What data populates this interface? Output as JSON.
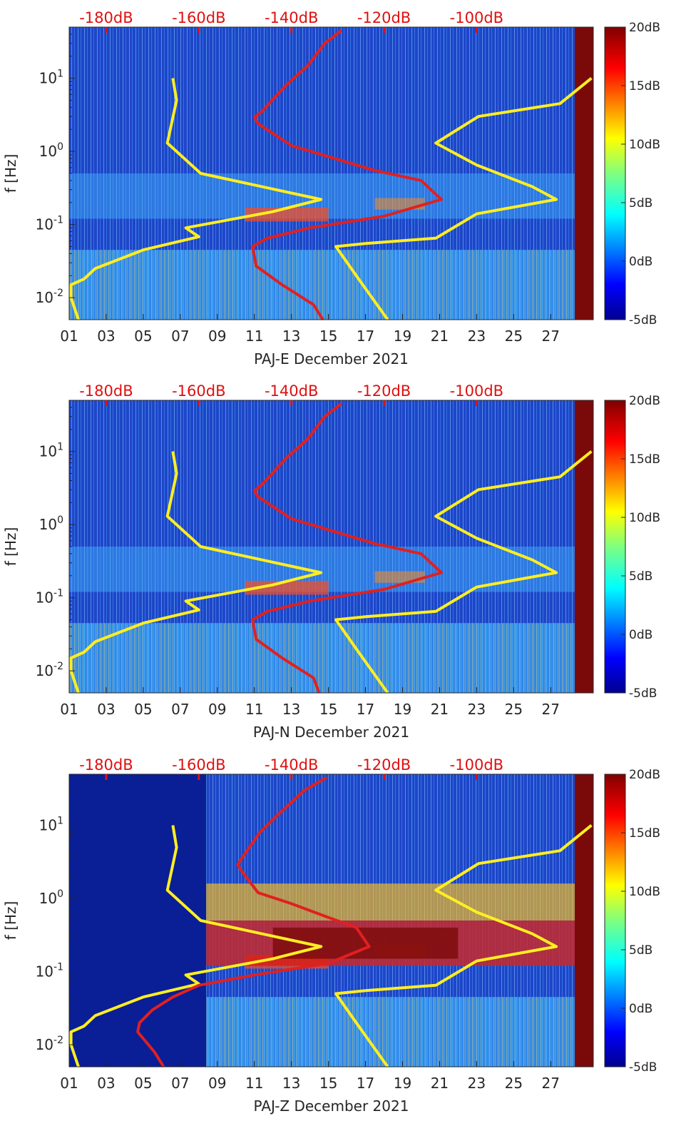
{
  "chart_data": [
    {
      "type": "heatmap",
      "title": "",
      "xlabel": "PAJ-E December 2021",
      "ylabel": "f [Hz]",
      "scale_y": "log",
      "ylim": [
        0.005,
        50
      ],
      "xlim": [
        1,
        29.3
      ],
      "x_ticks": [
        "01",
        "03",
        "05",
        "07",
        "09",
        "11",
        "13",
        "15",
        "17",
        "19",
        "21",
        "23",
        "25",
        "27"
      ],
      "y_ticks": [
        "10-2",
        "10-1",
        "100",
        "101"
      ],
      "top_axis_ticks": [
        "-180dB",
        "-160dB",
        "-140dB",
        "-120dB",
        "-100dB"
      ],
      "colorbar": {
        "ticks": [
          "20dB",
          "15dB",
          "10dB",
          "5dB",
          "0dB",
          "-5dB"
        ],
        "range": [
          -5,
          20
        ]
      },
      "series": [
        {
          "color": "#ffee22",
          "points": [
            [
              6.6,
              10
            ],
            [
              6.8,
              5
            ],
            [
              6.3,
              1.3
            ],
            [
              8.1,
              0.5
            ],
            [
              14.6,
              0.22
            ],
            [
              12,
              0.15
            ],
            [
              7.3,
              0.09
            ],
            [
              8.0,
              0.068
            ],
            [
              5,
              0.045
            ],
            [
              2.4,
              0.025
            ],
            [
              1.8,
              0.018
            ],
            [
              1.1,
              0.015
            ],
            [
              1.1,
              0.01
            ],
            [
              1.5,
              0.005
            ]
          ]
        },
        {
          "color": "#ffee22",
          "points": [
            [
              29.2,
              10
            ],
            [
              27.5,
              4.5
            ],
            [
              23.1,
              3.0
            ],
            [
              20.8,
              1.3
            ],
            [
              23,
              0.65
            ],
            [
              26,
              0.33
            ],
            [
              27.3,
              0.22
            ],
            [
              23,
              0.14
            ],
            [
              20.8,
              0.065
            ],
            [
              17,
              0.055
            ],
            [
              15.4,
              0.05
            ],
            [
              16.5,
              0.02
            ],
            [
              18.2,
              0.005
            ]
          ]
        },
        {
          "color": "#e02020",
          "points": [
            [
              15.7,
              45
            ],
            [
              14.8,
              30
            ],
            [
              13.9,
              15
            ],
            [
              12.7,
              8
            ],
            [
              11.4,
              3.5
            ],
            [
              11.0,
              2.9
            ],
            [
              11.2,
              2.4
            ],
            [
              13,
              1.2
            ],
            [
              15,
              0.85
            ],
            [
              17.5,
              0.55
            ],
            [
              20,
              0.4
            ],
            [
              21.1,
              0.22
            ],
            [
              18,
              0.13
            ],
            [
              14,
              0.09
            ],
            [
              11.7,
              0.065
            ],
            [
              10.9,
              0.05
            ],
            [
              11.1,
              0.027
            ],
            [
              12.5,
              0.015
            ],
            [
              14.2,
              0.008
            ],
            [
              14.7,
              0.005
            ]
          ]
        }
      ]
    },
    {
      "type": "heatmap",
      "title": "",
      "xlabel": "PAJ-N December 2021",
      "ylabel": "f [Hz]",
      "scale_y": "log",
      "ylim": [
        0.005,
        50
      ],
      "xlim": [
        1,
        29.3
      ],
      "x_ticks": [
        "01",
        "03",
        "05",
        "07",
        "09",
        "11",
        "13",
        "15",
        "17",
        "19",
        "21",
        "23",
        "25",
        "27"
      ],
      "y_ticks": [
        "10-2",
        "10-1",
        "100",
        "101"
      ],
      "top_axis_ticks": [
        "-180dB",
        "-160dB",
        "-140dB",
        "-120dB",
        "-100dB"
      ],
      "colorbar": {
        "ticks": [
          "20dB",
          "15dB",
          "10dB",
          "5dB",
          "0dB",
          "-5dB"
        ],
        "range": [
          -5,
          20
        ]
      },
      "series": [
        {
          "color": "#ffee22",
          "points": [
            [
              6.6,
              10
            ],
            [
              6.8,
              5
            ],
            [
              6.3,
              1.3
            ],
            [
              8.1,
              0.5
            ],
            [
              14.6,
              0.22
            ],
            [
              12,
              0.15
            ],
            [
              7.3,
              0.09
            ],
            [
              8.0,
              0.068
            ],
            [
              5,
              0.045
            ],
            [
              2.4,
              0.025
            ],
            [
              1.8,
              0.018
            ],
            [
              1.1,
              0.015
            ],
            [
              1.1,
              0.01
            ],
            [
              1.5,
              0.005
            ]
          ]
        },
        {
          "color": "#ffee22",
          "points": [
            [
              29.2,
              10
            ],
            [
              27.5,
              4.5
            ],
            [
              23.1,
              3.0
            ],
            [
              20.8,
              1.3
            ],
            [
              23,
              0.65
            ],
            [
              26,
              0.33
            ],
            [
              27.3,
              0.22
            ],
            [
              23,
              0.14
            ],
            [
              20.8,
              0.065
            ],
            [
              17,
              0.055
            ],
            [
              15.4,
              0.05
            ],
            [
              16.5,
              0.02
            ],
            [
              18.2,
              0.005
            ]
          ]
        },
        {
          "color": "#e02020",
          "points": [
            [
              15.7,
              45
            ],
            [
              14.8,
              30
            ],
            [
              13.9,
              15
            ],
            [
              12.7,
              8
            ],
            [
              11.4,
              3.5
            ],
            [
              11.0,
              2.9
            ],
            [
              11.2,
              2.4
            ],
            [
              13,
              1.2
            ],
            [
              15,
              0.85
            ],
            [
              17.5,
              0.55
            ],
            [
              20,
              0.4
            ],
            [
              21.1,
              0.22
            ],
            [
              18,
              0.13
            ],
            [
              14,
              0.09
            ],
            [
              11.7,
              0.065
            ],
            [
              10.9,
              0.05
            ],
            [
              11.1,
              0.027
            ],
            [
              12.5,
              0.015
            ],
            [
              14.2,
              0.008
            ],
            [
              14.5,
              0.005
            ]
          ]
        }
      ]
    },
    {
      "type": "heatmap",
      "title": "",
      "xlabel": "PAJ-Z December 2021",
      "ylabel": "f [Hz]",
      "scale_y": "log",
      "ylim": [
        0.005,
        50
      ],
      "xlim": [
        1,
        29.3
      ],
      "x_ticks": [
        "01",
        "03",
        "05",
        "07",
        "09",
        "11",
        "13",
        "15",
        "17",
        "19",
        "21",
        "23",
        "25",
        "27"
      ],
      "y_ticks": [
        "10-2",
        "10-1",
        "100",
        "101"
      ],
      "top_axis_ticks": [
        "-180dB",
        "-160dB",
        "-140dB",
        "-120dB",
        "-100dB"
      ],
      "colorbar": {
        "ticks": [
          "20dB",
          "15dB",
          "10dB",
          "5dB",
          "0dB",
          "-5dB"
        ],
        "range": [
          -5,
          20
        ]
      },
      "series": [
        {
          "color": "#ffee22",
          "points": [
            [
              6.6,
              10
            ],
            [
              6.8,
              5
            ],
            [
              6.3,
              1.3
            ],
            [
              8.1,
              0.5
            ],
            [
              14.6,
              0.22
            ],
            [
              12,
              0.15
            ],
            [
              7.3,
              0.09
            ],
            [
              8.0,
              0.068
            ],
            [
              5,
              0.045
            ],
            [
              2.4,
              0.025
            ],
            [
              1.8,
              0.018
            ],
            [
              1.1,
              0.015
            ],
            [
              1.1,
              0.01
            ],
            [
              1.5,
              0.005
            ]
          ]
        },
        {
          "color": "#ffee22",
          "points": [
            [
              29.2,
              10
            ],
            [
              27.5,
              4.5
            ],
            [
              23.1,
              3.0
            ],
            [
              20.8,
              1.3
            ],
            [
              23,
              0.65
            ],
            [
              26,
              0.33
            ],
            [
              27.3,
              0.22
            ],
            [
              23,
              0.14
            ],
            [
              20.8,
              0.065
            ],
            [
              17,
              0.055
            ],
            [
              15.4,
              0.05
            ],
            [
              16.5,
              0.02
            ],
            [
              18.2,
              0.005
            ]
          ]
        },
        {
          "color": "#e02020",
          "points": [
            [
              14.9,
              45
            ],
            [
              13.7,
              30
            ],
            [
              12.4,
              15
            ],
            [
              11.3,
              8
            ],
            [
              10.3,
              3.5
            ],
            [
              10.1,
              2.9
            ],
            [
              10.3,
              2.4
            ],
            [
              11.2,
              1.2
            ],
            [
              13,
              0.85
            ],
            [
              15,
              0.55
            ],
            [
              16.5,
              0.4
            ],
            [
              17.2,
              0.22
            ],
            [
              15,
              0.13
            ],
            [
              11,
              0.09
            ],
            [
              8,
              0.065
            ],
            [
              6.6,
              0.045
            ],
            [
              5.5,
              0.03
            ],
            [
              4.8,
              0.02
            ],
            [
              4.7,
              0.015
            ],
            [
              5.6,
              0.008
            ],
            [
              6.1,
              0.005
            ]
          ]
        }
      ]
    }
  ],
  "colors": {
    "background_low": "#0a1e96",
    "base_blue": "#1e46c8",
    "hot": "#7a0a0a",
    "curve_yellow": "#ffee22",
    "curve_red": "#e02020"
  }
}
